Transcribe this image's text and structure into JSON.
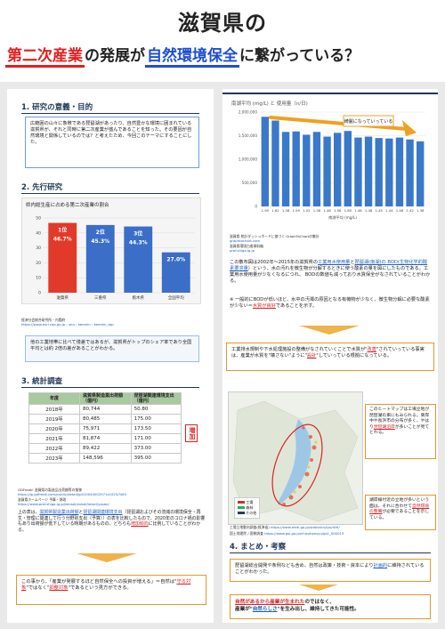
{
  "title": {
    "line1": "滋賀県の",
    "part1": "第二次産業",
    "part2": "の発展が",
    "part3": "自然環境保全",
    "part4": "に繋がっている？"
  },
  "sec1": {
    "heading": "1. 研究の意義・目的",
    "body": "広範囲の山々に象徴である琵琶湖があったり、自然豊かな環境に囲まれている滋賀県が、それと同時に第二次産業が盛んであることを知った。その要因が自然環境と関係しているのでは？と考えたため、今回このテーマにすることにした。"
  },
  "sec2": {
    "heading": "2. 先行研究",
    "chart_title": "県内総生産に占める第二次産業の割合",
    "source1": "経済社会総合研究所・内閣府",
    "source2": "https://www.esri.cao.go.jp › sna › kenmin › kenmin_top",
    "note": "他の工業地帯に比べて僅差ではあるが、滋賀県がトップのシェア率であり全国平均とは約 2倍の差があることがわかる。"
  },
  "chart_data": [
    {
      "type": "bar",
      "title": "県内総生産に占める第二次産業の割合",
      "categories": [
        "滋賀県",
        "三重県",
        "栃木県",
        "全国平均"
      ],
      "values": [
        46.7,
        45.3,
        44.3,
        27.0
      ],
      "rank_labels": [
        "1位",
        "2位",
        "3位",
        ""
      ],
      "value_labels": [
        "46.7%",
        "45.3%",
        "44.3%",
        "27.0%"
      ],
      "yticks": [
        0,
        10,
        20,
        30,
        40,
        50
      ],
      "ylim": [
        0,
        50
      ],
      "colors": [
        "#e23a2a",
        "#3a6ec7",
        "#3a6ec7",
        "#3a6ec7"
      ]
    },
    {
      "type": "bar",
      "title": "南湖平均 (mg/L) と 使用量（n/日)",
      "categories": [
        "1.90",
        "1.82",
        "1.58",
        "1.59",
        "1.52",
        "1.58",
        "1.48",
        "1.56",
        "1.60",
        "1.46",
        "1.48",
        "1.45",
        "1.44",
        "1.46",
        "1.42",
        "1.38"
      ],
      "values": [
        1900000,
        1820000,
        1580000,
        1590000,
        1520000,
        1580000,
        1480000,
        1560000,
        1600000,
        1460000,
        1480000,
        1450000,
        1440000,
        1460000,
        1420000,
        1380000
      ],
      "yticks": [
        "0",
        "500,000",
        "1,000,000",
        "1,500,000",
        "2,000,000"
      ],
      "ylim": [
        0,
        2000000
      ],
      "xlabel": "南湖平均 (mg/L)",
      "annotation": "綺麗になっていっている",
      "colors": [
        "#3a78c9"
      ]
    }
  ],
  "sec3": {
    "heading": "3. 統計調査",
    "table": {
      "headers": [
        "年度",
        "滋賀県製造業出荷額（億円）",
        "琵琶湖関連環境支出（億円）"
      ],
      "rows": [
        [
          "2018年",
          "80,744",
          "50.80"
        ],
        [
          "2019年",
          "80,485",
          "175.00"
        ],
        [
          "2020年",
          "75,971",
          "173.50"
        ],
        [
          "2021年",
          "81,874",
          "171.00"
        ],
        [
          "2022年",
          "89,422",
          "373.00"
        ],
        [
          "2023年",
          "148,596",
          "395.00"
        ]
      ],
      "increase_label": "増加"
    },
    "source1": "GDFreak! 滋賀県の製造品出荷額等の推移",
    "source1_url": "https://jp.gdfreak.com/public/detail/jp010040002571z1025/3/63",
    "source2": "滋賀県ホームページ 予算・財政",
    "source2_url": "https://www.pref.shiga.lg.jp/kensei/zaisei/teisei/yosan/",
    "note_pre": "上の表は、",
    "note_link1": "滋賀県製造業出荷額",
    "note_mid1": "と",
    "note_link2": "琵琶湖関連環境支出",
    "note_post": "（琵琶湖およびその流域の環境保全・再生・管理に関連して行う分野別支出（予算））の表を比較したもので、2020年のコロナ禍の影響もあり出荷額が低下している時期があるものの、どちらも",
    "note_red": "増加傾向",
    "note_end": "に比例していることがわかる。"
  },
  "conclusion_box": {
    "pre": "この事から、「産業が発展するほど自然保全への投資が増える」＝自然は\"",
    "red1": "守る対象",
    "mid": "\"ではなく\"",
    "red2": "調整対象",
    "post": "\"であるという見方ができる。"
  },
  "right": {
    "chart_header": "南湖平均 (mg/L) と 使用量（n/日)",
    "source1": "滋賀県 統計ダッシュボードに基づく GraphToChartの集計",
    "source1_url": "graphtochart.com",
    "source2": "滋賀県環境白書資料編",
    "source2_url": "pref.shiga.lg.jp",
    "para1_pre": "この散布図は2002年〜2015年の滋賀県の",
    "para1_link1": "工業用水使用量",
    "para1_mid": "と",
    "para1_link2": "琵琶湖(南湖)の BOD(生物化学的酸素要求量",
    "para1_post": "）という、水の汚れを微生物が分解するときに使う酸素の量を図にしたものである。工業用水使用量が少なくなるにつれ、 BODの数値も減っており水質保全がなされていることがわかる。",
    "para2_pre": "※ 一般的にBODが低いほど、水中の汚濁の原因となる有機物が少なく、微生物分解に必要な酸素が少ない＝",
    "para2_red": "水質が良好",
    "para2_post": "であることを示す。",
    "box_pre": "工業排水規制や下水処理施設の整備がなされていくことで水質が\"",
    "box_red1": "改善",
    "box_mid": "\"されていっている事実は、産業が水質を\"壊さない\"ように\"",
    "box_red2": "設計",
    "box_post": "\"していっている根拠になっている。"
  },
  "map": {
    "legend1": "工場",
    "legend2": "森林",
    "legend3": "その他",
    "source1": "工場立地動向調査(経済省)",
    "source1_url": "https://www.meti.go.jp/statistics/tyo/ritti/",
    "source2": "国土地理院 / 国勢調査",
    "source2_url": "https://www.gsi.go.jp/chizuhensyu/gs1_000013",
    "note1_pre": "このヒートマップは工場立地が琵琶湖の東にもみられる。東岸中や長浜市の分布が多く、やはり",
    "note1_red": "琵琶湖沿岸",
    "note1_post": "が多いことが見てとれる。",
    "note2_pre": "湖岸線付近の立地が多いという面は、それに合わせて",
    "note2_red": "自然環境の整備",
    "note2_post": "が必要であることを示している。"
  },
  "sec4": {
    "heading": "4. まとめ・考察",
    "body_pre": "琵琶湖総合開発や条例なども含め、自然は政策・技術・資本により",
    "body_link": "計画的",
    "body_post": "に維持されていることがわかった。",
    "final_pre": "自然があるから産業が生まれた",
    "final_mid": "のではなく、",
    "final_pre2": "産業が\"",
    "final_link": "自然らしさ",
    "final_post": "\"を生み出し、維持してきた可能性。"
  }
}
